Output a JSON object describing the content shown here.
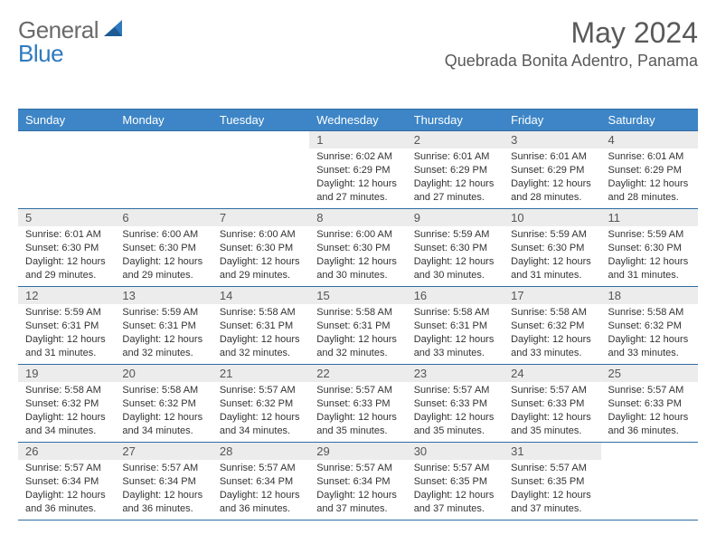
{
  "brand": {
    "part1": "General",
    "part2": "Blue"
  },
  "title": "May 2024",
  "location": "Quebrada Bonita Adentro, Panama",
  "colors": {
    "header_bg": "#3d85c6",
    "header_text": "#ffffff",
    "border": "#2f6da3",
    "daynum_bg": "#ececec",
    "text": "#333333",
    "title_text": "#595959",
    "logo_gray": "#6a6a6a",
    "logo_blue": "#2f7abf"
  },
  "day_headers": [
    "Sunday",
    "Monday",
    "Tuesday",
    "Wednesday",
    "Thursday",
    "Friday",
    "Saturday"
  ],
  "first_weekday_index": 3,
  "days": [
    {
      "n": 1,
      "sunrise": "6:02 AM",
      "sunset": "6:29 PM",
      "daylight": "12 hours and 27 minutes."
    },
    {
      "n": 2,
      "sunrise": "6:01 AM",
      "sunset": "6:29 PM",
      "daylight": "12 hours and 27 minutes."
    },
    {
      "n": 3,
      "sunrise": "6:01 AM",
      "sunset": "6:29 PM",
      "daylight": "12 hours and 28 minutes."
    },
    {
      "n": 4,
      "sunrise": "6:01 AM",
      "sunset": "6:29 PM",
      "daylight": "12 hours and 28 minutes."
    },
    {
      "n": 5,
      "sunrise": "6:01 AM",
      "sunset": "6:30 PM",
      "daylight": "12 hours and 29 minutes."
    },
    {
      "n": 6,
      "sunrise": "6:00 AM",
      "sunset": "6:30 PM",
      "daylight": "12 hours and 29 minutes."
    },
    {
      "n": 7,
      "sunrise": "6:00 AM",
      "sunset": "6:30 PM",
      "daylight": "12 hours and 29 minutes."
    },
    {
      "n": 8,
      "sunrise": "6:00 AM",
      "sunset": "6:30 PM",
      "daylight": "12 hours and 30 minutes."
    },
    {
      "n": 9,
      "sunrise": "5:59 AM",
      "sunset": "6:30 PM",
      "daylight": "12 hours and 30 minutes."
    },
    {
      "n": 10,
      "sunrise": "5:59 AM",
      "sunset": "6:30 PM",
      "daylight": "12 hours and 31 minutes."
    },
    {
      "n": 11,
      "sunrise": "5:59 AM",
      "sunset": "6:30 PM",
      "daylight": "12 hours and 31 minutes."
    },
    {
      "n": 12,
      "sunrise": "5:59 AM",
      "sunset": "6:31 PM",
      "daylight": "12 hours and 31 minutes."
    },
    {
      "n": 13,
      "sunrise": "5:59 AM",
      "sunset": "6:31 PM",
      "daylight": "12 hours and 32 minutes."
    },
    {
      "n": 14,
      "sunrise": "5:58 AM",
      "sunset": "6:31 PM",
      "daylight": "12 hours and 32 minutes."
    },
    {
      "n": 15,
      "sunrise": "5:58 AM",
      "sunset": "6:31 PM",
      "daylight": "12 hours and 32 minutes."
    },
    {
      "n": 16,
      "sunrise": "5:58 AM",
      "sunset": "6:31 PM",
      "daylight": "12 hours and 33 minutes."
    },
    {
      "n": 17,
      "sunrise": "5:58 AM",
      "sunset": "6:32 PM",
      "daylight": "12 hours and 33 minutes."
    },
    {
      "n": 18,
      "sunrise": "5:58 AM",
      "sunset": "6:32 PM",
      "daylight": "12 hours and 33 minutes."
    },
    {
      "n": 19,
      "sunrise": "5:58 AM",
      "sunset": "6:32 PM",
      "daylight": "12 hours and 34 minutes."
    },
    {
      "n": 20,
      "sunrise": "5:58 AM",
      "sunset": "6:32 PM",
      "daylight": "12 hours and 34 minutes."
    },
    {
      "n": 21,
      "sunrise": "5:57 AM",
      "sunset": "6:32 PM",
      "daylight": "12 hours and 34 minutes."
    },
    {
      "n": 22,
      "sunrise": "5:57 AM",
      "sunset": "6:33 PM",
      "daylight": "12 hours and 35 minutes."
    },
    {
      "n": 23,
      "sunrise": "5:57 AM",
      "sunset": "6:33 PM",
      "daylight": "12 hours and 35 minutes."
    },
    {
      "n": 24,
      "sunrise": "5:57 AM",
      "sunset": "6:33 PM",
      "daylight": "12 hours and 35 minutes."
    },
    {
      "n": 25,
      "sunrise": "5:57 AM",
      "sunset": "6:33 PM",
      "daylight": "12 hours and 36 minutes."
    },
    {
      "n": 26,
      "sunrise": "5:57 AM",
      "sunset": "6:34 PM",
      "daylight": "12 hours and 36 minutes."
    },
    {
      "n": 27,
      "sunrise": "5:57 AM",
      "sunset": "6:34 PM",
      "daylight": "12 hours and 36 minutes."
    },
    {
      "n": 28,
      "sunrise": "5:57 AM",
      "sunset": "6:34 PM",
      "daylight": "12 hours and 36 minutes."
    },
    {
      "n": 29,
      "sunrise": "5:57 AM",
      "sunset": "6:34 PM",
      "daylight": "12 hours and 37 minutes."
    },
    {
      "n": 30,
      "sunrise": "5:57 AM",
      "sunset": "6:35 PM",
      "daylight": "12 hours and 37 minutes."
    },
    {
      "n": 31,
      "sunrise": "5:57 AM",
      "sunset": "6:35 PM",
      "daylight": "12 hours and 37 minutes."
    }
  ],
  "labels": {
    "sunrise": "Sunrise:",
    "sunset": "Sunset:",
    "daylight": "Daylight:"
  }
}
